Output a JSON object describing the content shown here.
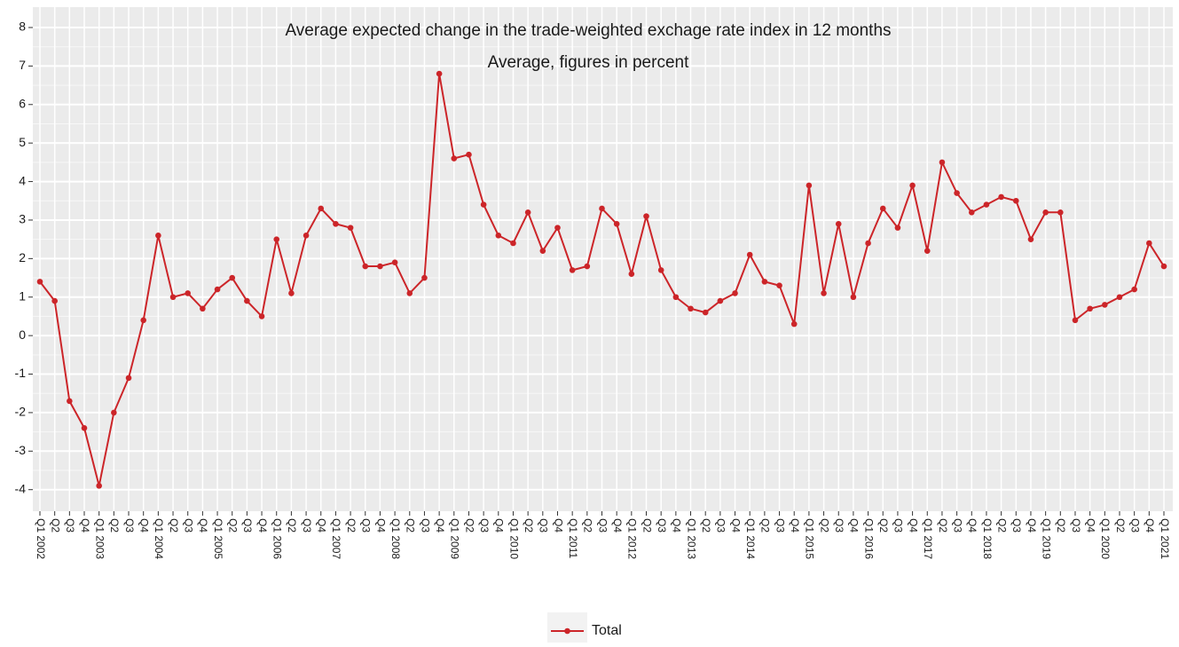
{
  "chart_data": {
    "type": "line",
    "title": "Average expected change in the trade-weighted exchage rate index in 12 months",
    "subtitle": "Average, figures in percent",
    "categories": [
      "Q1 2002",
      "Q2",
      "Q3",
      "Q4",
      "Q1 2003",
      "Q2",
      "Q3",
      "Q4",
      "Q1 2004",
      "Q2",
      "Q3",
      "Q4",
      "Q1 2005",
      "Q2",
      "Q3",
      "Q4",
      "Q1 2006",
      "Q2",
      "Q3",
      "Q4",
      "Q1 2007",
      "Q2",
      "Q3",
      "Q4",
      "Q1 2008",
      "Q2",
      "Q3",
      "Q4",
      "Q1 2009",
      "Q2",
      "Q3",
      "Q4",
      "Q1 2010",
      "Q2",
      "Q3",
      "Q4",
      "Q1 2011",
      "Q2",
      "Q3",
      "Q4",
      "Q1 2012",
      "Q2",
      "Q3",
      "Q4",
      "Q1 2013",
      "Q2",
      "Q3",
      "Q4",
      "Q1 2014",
      "Q2",
      "Q3",
      "Q4",
      "Q1 2015",
      "Q2",
      "Q3",
      "Q4",
      "Q1 2016",
      "Q2",
      "Q3",
      "Q4",
      "Q1 2017",
      "Q2",
      "Q3",
      "Q4",
      "Q1 2018",
      "Q2",
      "Q3",
      "Q4",
      "Q1 2019",
      "Q2",
      "Q3",
      "Q4",
      "Q1 2020",
      "Q2",
      "Q3",
      "Q4",
      "Q1 2021"
    ],
    "series": [
      {
        "name": "Total",
        "color": "#cc2529",
        "values": [
          1.4,
          0.9,
          -1.7,
          -2.4,
          -3.9,
          -2.0,
          -1.1,
          0.4,
          2.6,
          1.0,
          1.1,
          0.7,
          1.2,
          1.5,
          0.9,
          0.5,
          2.5,
          1.1,
          2.6,
          3.3,
          2.9,
          2.8,
          1.8,
          1.8,
          1.9,
          1.1,
          1.5,
          6.8,
          4.6,
          4.7,
          3.4,
          2.6,
          2.4,
          3.2,
          2.2,
          2.8,
          1.7,
          1.8,
          3.3,
          2.9,
          1.6,
          3.1,
          1.7,
          1.0,
          0.7,
          0.6,
          0.9,
          1.1,
          2.1,
          1.4,
          1.3,
          0.3,
          3.9,
          1.1,
          2.9,
          1.0,
          2.4,
          3.3,
          2.8,
          3.9,
          2.2,
          4.5,
          3.7,
          3.2,
          3.4,
          3.6,
          3.5,
          2.5,
          3.2,
          3.2,
          0.4,
          0.7,
          0.8,
          1.0,
          1.2,
          2.4,
          1.8
        ]
      }
    ],
    "ylim": [
      -4.56,
      8.53
    ],
    "yticks": [
      -4,
      -3,
      -2,
      -1,
      0,
      1,
      2,
      3,
      4,
      5,
      6,
      7,
      8
    ],
    "grid": true,
    "legend": "bottom"
  }
}
